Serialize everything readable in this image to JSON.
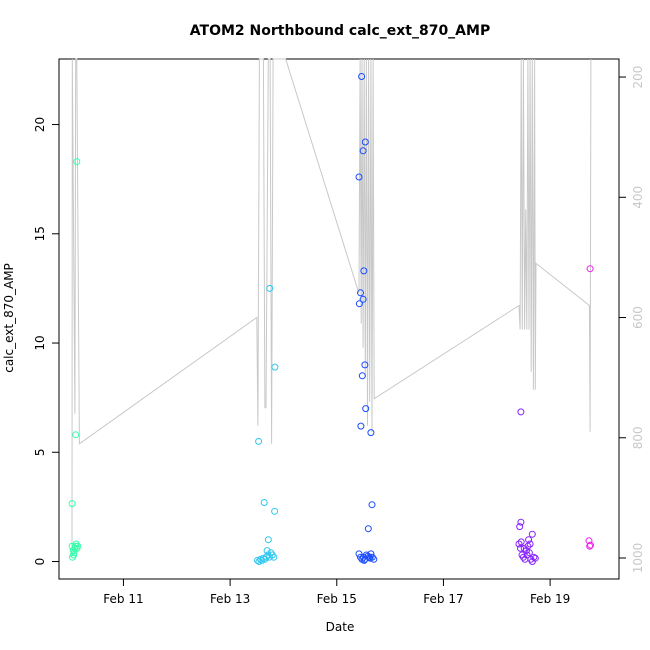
{
  "chart_data": {
    "type": "scatter",
    "title": "ATOM2 Northbound calc_ext_870_AMP",
    "xlabel": "Date",
    "ylabel": "calc_ext_870_AMP",
    "xlim": [
      "2024-02-09T19:00",
      "2024-02-20T07:00"
    ],
    "ylim": [
      -0.8,
      23.0
    ],
    "y2lim": [
      1000,
      170
    ],
    "x_ticks": [
      {
        "value": "2024-02-11",
        "label": "Feb 11"
      },
      {
        "value": "2024-02-13",
        "label": "Feb 13"
      },
      {
        "value": "2024-02-15",
        "label": "Feb 15"
      },
      {
        "value": "2024-02-17",
        "label": "Feb 17"
      },
      {
        "value": "2024-02-19",
        "label": "Feb 19"
      }
    ],
    "y_ticks": [
      0,
      5,
      10,
      15,
      20
    ],
    "y2_ticks": [
      200,
      400,
      600,
      800,
      1000
    ],
    "depth_line_color": "#c8c8c8",
    "colors": {
      "feb10": "#33ffaa",
      "feb13": "#2ec8f0",
      "feb15": "#1a4bff",
      "feb18": "#8822ff",
      "feb19": "#ee22ee"
    },
    "series": [
      {
        "color_key": "feb10",
        "points": [
          [
            "2024-02-10T01:05",
            0.2
          ],
          [
            "2024-02-10T01:25",
            0.5
          ],
          [
            "2024-02-10T01:45",
            0.4
          ],
          [
            "2024-02-10T02:05",
            0.6
          ],
          [
            "2024-02-10T02:25",
            0.7
          ],
          [
            "2024-02-10T02:45",
            0.8
          ],
          [
            "2024-02-10T03:05",
            0.6
          ],
          [
            "2024-02-10T03:25",
            0.7
          ],
          [
            "2024-02-10T00:55",
            0.7
          ],
          [
            "2024-02-10T01:35",
            0.3
          ],
          [
            "2024-02-10T00:55",
            2.65
          ],
          [
            "2024-02-10T02:30",
            5.8
          ],
          [
            "2024-02-10T03:00",
            18.3
          ]
        ]
      },
      {
        "color_key": "feb13",
        "points": [
          [
            "2024-02-13T12:20",
            0.05
          ],
          [
            "2024-02-13T13:00",
            0.0
          ],
          [
            "2024-02-13T13:40",
            0.1
          ],
          [
            "2024-02-13T14:20",
            0.05
          ],
          [
            "2024-02-13T15:00",
            0.15
          ],
          [
            "2024-02-13T15:40",
            0.1
          ],
          [
            "2024-02-13T16:20",
            0.2
          ],
          [
            "2024-02-13T17:00",
            0.3
          ],
          [
            "2024-02-13T17:40",
            0.2
          ],
          [
            "2024-02-13T18:20",
            0.4
          ],
          [
            "2024-02-13T19:00",
            0.3
          ],
          [
            "2024-02-13T19:40",
            0.2
          ],
          [
            "2024-02-13T16:40",
            0.5
          ],
          [
            "2024-02-13T17:10",
            1.0
          ],
          [
            "2024-02-13T12:50",
            5.5
          ],
          [
            "2024-02-13T15:20",
            2.7
          ],
          [
            "2024-02-13T20:00",
            2.3
          ],
          [
            "2024-02-13T17:50",
            12.5
          ],
          [
            "2024-02-13T20:10",
            8.9
          ]
        ]
      },
      {
        "color_key": "feb15",
        "points": [
          [
            "2024-02-15T10:00",
            0.35
          ],
          [
            "2024-02-15T10:40",
            0.2
          ],
          [
            "2024-02-15T11:20",
            0.1
          ],
          [
            "2024-02-15T12:00",
            0.2
          ],
          [
            "2024-02-15T12:40",
            0.1
          ],
          [
            "2024-02-15T13:20",
            0.3
          ],
          [
            "2024-02-15T14:00",
            0.25
          ],
          [
            "2024-02-15T14:40",
            0.2
          ],
          [
            "2024-02-15T15:20",
            0.35
          ],
          [
            "2024-02-15T16:00",
            0.2
          ],
          [
            "2024-02-15T16:40",
            0.1
          ],
          [
            "2024-02-15T12:20",
            0.05
          ],
          [
            "2024-02-15T15:00",
            0.15
          ],
          [
            "2024-02-15T14:10",
            1.5
          ],
          [
            "2024-02-15T15:50",
            2.6
          ],
          [
            "2024-02-15T10:50",
            6.2
          ],
          [
            "2024-02-15T15:20",
            5.9
          ],
          [
            "2024-02-15T13:00",
            7.0
          ],
          [
            "2024-02-15T11:30",
            8.5
          ],
          [
            "2024-02-15T12:40",
            9.0
          ],
          [
            "2024-02-15T10:10",
            11.8
          ],
          [
            "2024-02-15T10:40",
            12.3
          ],
          [
            "2024-02-15T11:50",
            12.0
          ],
          [
            "2024-02-15T12:10",
            13.3
          ],
          [
            "2024-02-15T10:00",
            17.6
          ],
          [
            "2024-02-15T11:50",
            18.8
          ],
          [
            "2024-02-15T12:50",
            19.2
          ],
          [
            "2024-02-15T11:10",
            22.2
          ]
        ]
      },
      {
        "color_key": "feb18",
        "points": [
          [
            "2024-02-18T10:00",
            0.8
          ],
          [
            "2024-02-18T10:40",
            0.6
          ],
          [
            "2024-02-18T11:20",
            0.3
          ],
          [
            "2024-02-18T12:00",
            0.2
          ],
          [
            "2024-02-18T12:40",
            0.1
          ],
          [
            "2024-02-18T13:20",
            0.5
          ],
          [
            "2024-02-18T14:00",
            0.7
          ],
          [
            "2024-02-18T14:40",
            0.4
          ],
          [
            "2024-02-18T15:20",
            0.1
          ],
          [
            "2024-02-18T16:00",
            0.0
          ],
          [
            "2024-02-18T16:40",
            0.2
          ],
          [
            "2024-02-18T11:00",
            0.9
          ],
          [
            "2024-02-18T12:20",
            0.6
          ],
          [
            "2024-02-18T13:40",
            0.3
          ],
          [
            "2024-02-18T15:00",
            0.8
          ],
          [
            "2024-02-18T17:20",
            0.15
          ],
          [
            "2024-02-18T10:20",
            1.6
          ],
          [
            "2024-02-18T10:50",
            1.8
          ],
          [
            "2024-02-18T14:20",
            1.0
          ],
          [
            "2024-02-18T16:00",
            1.25
          ],
          [
            "2024-02-18T10:50",
            6.85
          ]
        ]
      },
      {
        "color_key": "feb19",
        "points": [
          [
            "2024-02-19T17:30",
            0.95
          ],
          [
            "2024-02-19T17:50",
            0.7
          ],
          [
            "2024-02-19T18:10",
            0.75
          ],
          [
            "2024-02-19T18:00",
            13.4
          ]
        ]
      }
    ],
    "depth_line": [
      [
        "2024-02-10T00:50",
        1000
      ],
      [
        "2024-02-10T01:00",
        170
      ],
      [
        "2024-02-10T02:10",
        760
      ],
      [
        "2024-02-10T02:30",
        170
      ],
      [
        "2024-02-10T03:00",
        170
      ],
      [
        "2024-02-10T04:10",
        810
      ],
      [
        "2024-02-13T12:00",
        600
      ],
      [
        "2024-02-13T12:30",
        780
      ],
      [
        "2024-02-13T13:10",
        170
      ],
      [
        "2024-02-13T15:00",
        170
      ],
      [
        "2024-02-13T15:40",
        750
      ],
      [
        "2024-02-13T16:10",
        750
      ],
      [
        "2024-02-13T17:10",
        170
      ],
      [
        "2024-02-13T18:00",
        170
      ],
      [
        "2024-02-13T18:40",
        810
      ],
      [
        "2024-02-13T19:20",
        170
      ],
      [
        "2024-02-14T01:00",
        170
      ],
      [
        "2024-02-15T10:00",
        560
      ],
      [
        "2024-02-15T10:30",
        170
      ],
      [
        "2024-02-15T11:00",
        610
      ],
      [
        "2024-02-15T11:20",
        170
      ],
      [
        "2024-02-15T11:50",
        650
      ],
      [
        "2024-02-15T12:20",
        170
      ],
      [
        "2024-02-15T12:50",
        700
      ],
      [
        "2024-02-15T13:20",
        170
      ],
      [
        "2024-02-15T13:50",
        780
      ],
      [
        "2024-02-15T14:20",
        170
      ],
      [
        "2024-02-15T14:50",
        740
      ],
      [
        "2024-02-15T15:20",
        170
      ],
      [
        "2024-02-15T15:50",
        790
      ],
      [
        "2024-02-15T16:20",
        170
      ],
      [
        "2024-02-15T16:50",
        735
      ],
      [
        "2024-02-18T10:00",
        580
      ],
      [
        "2024-02-18T10:30",
        620
      ],
      [
        "2024-02-18T11:00",
        170
      ],
      [
        "2024-02-18T11:30",
        620
      ],
      [
        "2024-02-18T12:00",
        170
      ],
      [
        "2024-02-18T12:30",
        620
      ],
      [
        "2024-02-18T13:00",
        420
      ],
      [
        "2024-02-18T13:30",
        620
      ],
      [
        "2024-02-18T14:00",
        170
      ],
      [
        "2024-02-18T14:30",
        620
      ],
      [
        "2024-02-18T15:00",
        170
      ],
      [
        "2024-02-18T15:30",
        690
      ],
      [
        "2024-02-18T16:00",
        170
      ],
      [
        "2024-02-18T16:30",
        720
      ],
      [
        "2024-02-18T17:00",
        170
      ],
      [
        "2024-02-18T17:20",
        720
      ],
      [
        "2024-02-18T17:40",
        510
      ],
      [
        "2024-02-19T17:40",
        580
      ],
      [
        "2024-02-19T18:00",
        790
      ],
      [
        "2024-02-19T18:20",
        170
      ]
    ]
  }
}
